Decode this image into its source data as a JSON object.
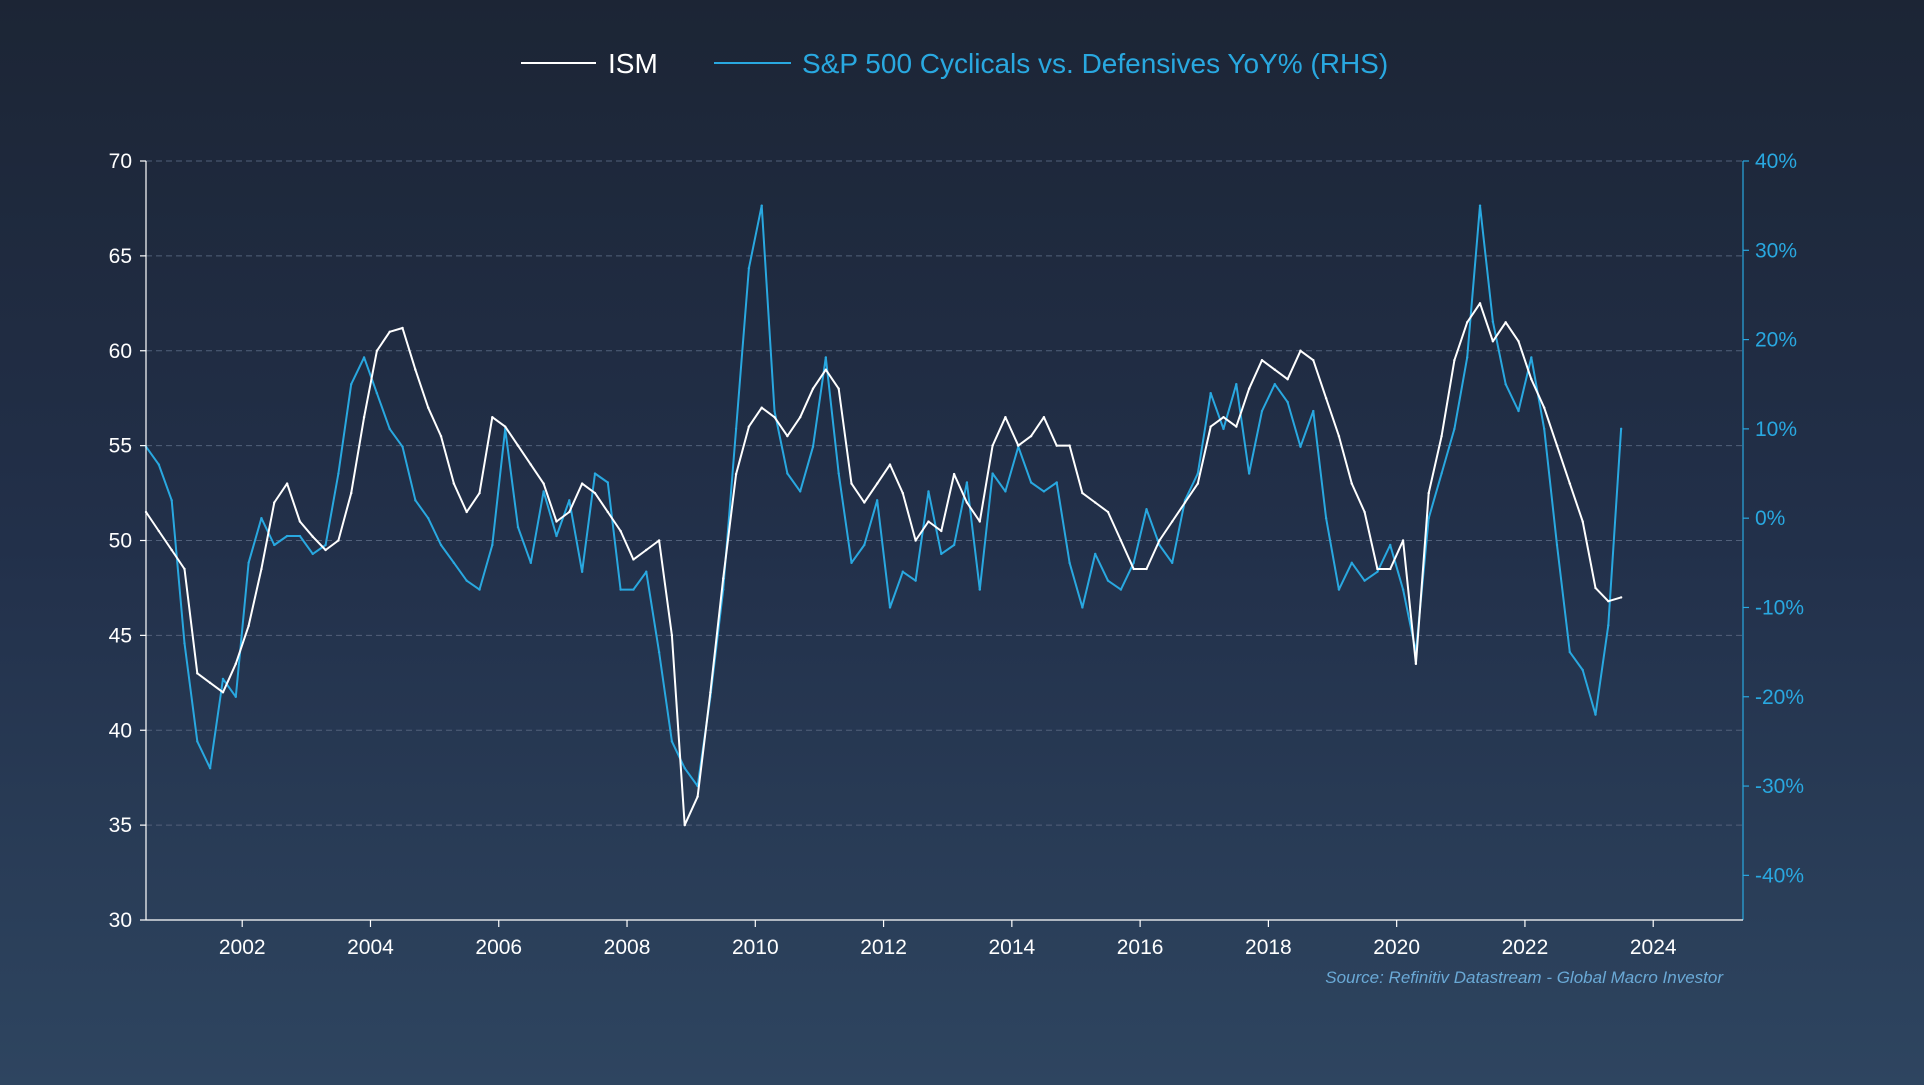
{
  "chart_data": {
    "type": "line",
    "legend": {
      "position": "top-center",
      "entries": [
        {
          "name": "ISM",
          "color": "#ffffff"
        },
        {
          "name": "S&P 500 Cyclicals vs. Defensives YoY% (RHS)",
          "color": "#29a8e0"
        }
      ]
    },
    "source": "Source: Refinitiv Datastream - Global Macro Investor",
    "colors": {
      "ism": "#ffffff",
      "ratio": "#29a8e0",
      "axis_left": "#ffffff",
      "axis_right": "#29a8e0"
    },
    "grid": true,
    "x_axis": {
      "range": [
        2000.5,
        2025.4
      ],
      "ticks": [
        2002,
        2004,
        2006,
        2008,
        2010,
        2012,
        2014,
        2016,
        2018,
        2020,
        2022,
        2024
      ],
      "tick_labels": [
        "2002",
        "2004",
        "2006",
        "2008",
        "2010",
        "2012",
        "2014",
        "2016",
        "2018",
        "2020",
        "2022",
        "2024"
      ]
    },
    "y_left": {
      "range": [
        30,
        70
      ],
      "ticks": [
        30,
        35,
        40,
        45,
        50,
        55,
        60,
        65,
        70
      ],
      "tick_labels": [
        "30",
        "35",
        "40",
        "45",
        "50",
        "55",
        "60",
        "65",
        "70"
      ]
    },
    "y_right": {
      "range": [
        -45,
        40
      ],
      "ticks": [
        -40,
        -30,
        -20,
        -10,
        0,
        10,
        20,
        30,
        40
      ],
      "tick_labels": [
        "-40%",
        "-30%",
        "-20%",
        "-10%",
        "0%",
        "10%",
        "20%",
        "30%",
        "40%"
      ]
    },
    "series": [
      {
        "name": "ISM",
        "axis": "left",
        "x": [
          2000.5,
          2000.7,
          2000.9,
          2001.1,
          2001.3,
          2001.5,
          2001.7,
          2001.9,
          2002.1,
          2002.3,
          2002.5,
          2002.7,
          2002.9,
          2003.1,
          2003.3,
          2003.5,
          2003.7,
          2003.9,
          2004.1,
          2004.3,
          2004.5,
          2004.7,
          2004.9,
          2005.1,
          2005.3,
          2005.5,
          2005.7,
          2005.9,
          2006.1,
          2006.3,
          2006.5,
          2006.7,
          2006.9,
          2007.1,
          2007.3,
          2007.5,
          2007.7,
          2007.9,
          2008.1,
          2008.3,
          2008.5,
          2008.7,
          2008.9,
          2009.1,
          2009.3,
          2009.5,
          2009.7,
          2009.9,
          2010.1,
          2010.3,
          2010.5,
          2010.7,
          2010.9,
          2011.1,
          2011.3,
          2011.5,
          2011.7,
          2011.9,
          2012.1,
          2012.3,
          2012.5,
          2012.7,
          2012.9,
          2013.1,
          2013.3,
          2013.5,
          2013.7,
          2013.9,
          2014.1,
          2014.3,
          2014.5,
          2014.7,
          2014.9,
          2015.1,
          2015.3,
          2015.5,
          2015.7,
          2015.9,
          2016.1,
          2016.3,
          2016.5,
          2016.7,
          2016.9,
          2017.1,
          2017.3,
          2017.5,
          2017.7,
          2017.9,
          2018.1,
          2018.3,
          2018.5,
          2018.7,
          2018.9,
          2019.1,
          2019.3,
          2019.5,
          2019.7,
          2019.9,
          2020.1,
          2020.3,
          2020.5,
          2020.7,
          2020.9,
          2021.1,
          2021.3,
          2021.5,
          2021.7,
          2021.9,
          2022.1,
          2022.3,
          2022.5,
          2022.7,
          2022.9,
          2023.1,
          2023.3,
          2023.5
        ],
        "values": [
          51.5,
          50.5,
          49.5,
          48.5,
          43.0,
          42.5,
          42.0,
          43.5,
          45.5,
          48.5,
          52.0,
          53.0,
          51.0,
          50.2,
          49.5,
          50.0,
          52.5,
          56.5,
          60.0,
          61.0,
          61.2,
          59.0,
          57.0,
          55.5,
          53.0,
          51.5,
          52.5,
          56.5,
          56.0,
          55.0,
          54.0,
          53.0,
          51.0,
          51.5,
          53.0,
          52.5,
          51.5,
          50.5,
          49.0,
          49.5,
          50.0,
          45.0,
          35.0,
          36.5,
          42.0,
          48.0,
          53.5,
          56.0,
          57.0,
          56.5,
          55.5,
          56.5,
          58.0,
          59.0,
          58.0,
          53.0,
          52.0,
          53.0,
          54.0,
          52.5,
          50.0,
          51.0,
          50.5,
          53.5,
          52.0,
          51.0,
          55.0,
          56.5,
          55.0,
          55.5,
          56.5,
          55.0,
          55.0,
          52.5,
          52.0,
          51.5,
          50.0,
          48.5,
          48.5,
          50.0,
          51.0,
          52.0,
          53.0,
          56.0,
          56.5,
          56.0,
          58.0,
          59.5,
          59.0,
          58.5,
          60.0,
          59.5,
          57.5,
          55.5,
          53.0,
          51.5,
          48.5,
          48.5,
          50.0,
          43.5,
          52.5,
          55.5,
          59.5,
          61.5,
          62.5,
          60.5,
          61.5,
          60.5,
          58.5,
          57.0,
          55.0,
          53.0,
          51.0,
          47.5,
          46.8,
          47.0
        ]
      },
      {
        "name": "S&P 500 Cyclicals vs. Defensives YoY% (RHS)",
        "axis": "right",
        "x": [
          2000.5,
          2000.7,
          2000.9,
          2001.1,
          2001.3,
          2001.5,
          2001.7,
          2001.9,
          2002.1,
          2002.3,
          2002.5,
          2002.7,
          2002.9,
          2003.1,
          2003.3,
          2003.5,
          2003.7,
          2003.9,
          2004.1,
          2004.3,
          2004.5,
          2004.7,
          2004.9,
          2005.1,
          2005.3,
          2005.5,
          2005.7,
          2005.9,
          2006.1,
          2006.3,
          2006.5,
          2006.7,
          2006.9,
          2007.1,
          2007.3,
          2007.5,
          2007.7,
          2007.9,
          2008.1,
          2008.3,
          2008.5,
          2008.7,
          2008.9,
          2009.1,
          2009.3,
          2009.5,
          2009.7,
          2009.9,
          2010.1,
          2010.3,
          2010.5,
          2010.7,
          2010.9,
          2011.1,
          2011.3,
          2011.5,
          2011.7,
          2011.9,
          2012.1,
          2012.3,
          2012.5,
          2012.7,
          2012.9,
          2013.1,
          2013.3,
          2013.5,
          2013.7,
          2013.9,
          2014.1,
          2014.3,
          2014.5,
          2014.7,
          2014.9,
          2015.1,
          2015.3,
          2015.5,
          2015.7,
          2015.9,
          2016.1,
          2016.3,
          2016.5,
          2016.7,
          2016.9,
          2017.1,
          2017.3,
          2017.5,
          2017.7,
          2017.9,
          2018.1,
          2018.3,
          2018.5,
          2018.7,
          2018.9,
          2019.1,
          2019.3,
          2019.5,
          2019.7,
          2019.9,
          2020.1,
          2020.3,
          2020.5,
          2020.7,
          2020.9,
          2021.1,
          2021.3,
          2021.5,
          2021.7,
          2021.9,
          2022.1,
          2022.3,
          2022.5,
          2022.7,
          2022.9,
          2023.1,
          2023.3,
          2023.5
        ],
        "values": [
          8.0,
          6.0,
          2.0,
          -14.0,
          -25.0,
          -28.0,
          -18.0,
          -20.0,
          -5.0,
          0.0,
          -3.0,
          -2.0,
          -2.0,
          -4.0,
          -3.0,
          5.0,
          15.0,
          18.0,
          14.0,
          10.0,
          8.0,
          2.0,
          0.0,
          -3.0,
          -5.0,
          -7.0,
          -8.0,
          -3.0,
          10.0,
          -1.0,
          -5.0,
          3.0,
          -2.0,
          2.0,
          -6.0,
          5.0,
          4.0,
          -8.0,
          -8.0,
          -6.0,
          -15.0,
          -25.0,
          -28.0,
          -30.0,
          -20.0,
          -8.0,
          10.0,
          28.0,
          35.0,
          12.0,
          5.0,
          3.0,
          8.0,
          18.0,
          5.0,
          -5.0,
          -3.0,
          2.0,
          -10.0,
          -6.0,
          -7.0,
          3.0,
          -4.0,
          -3.0,
          4.0,
          -8.0,
          5.0,
          3.0,
          8.0,
          4.0,
          3.0,
          4.0,
          -5.0,
          -10.0,
          -4.0,
          -7.0,
          -8.0,
          -5.0,
          1.0,
          -3.0,
          -5.0,
          2.0,
          5.0,
          14.0,
          10.0,
          15.0,
          5.0,
          12.0,
          15.0,
          13.0,
          8.0,
          12.0,
          0.0,
          -8.0,
          -5.0,
          -7.0,
          -6.0,
          -3.0,
          -8.0,
          -15.0,
          0.0,
          5.0,
          10.0,
          18.0,
          35.0,
          22.0,
          15.0,
          12.0,
          18.0,
          10.0,
          -3.0,
          -15.0,
          -17.0,
          -22.0,
          -12.0,
          10.0
        ]
      }
    ]
  }
}
